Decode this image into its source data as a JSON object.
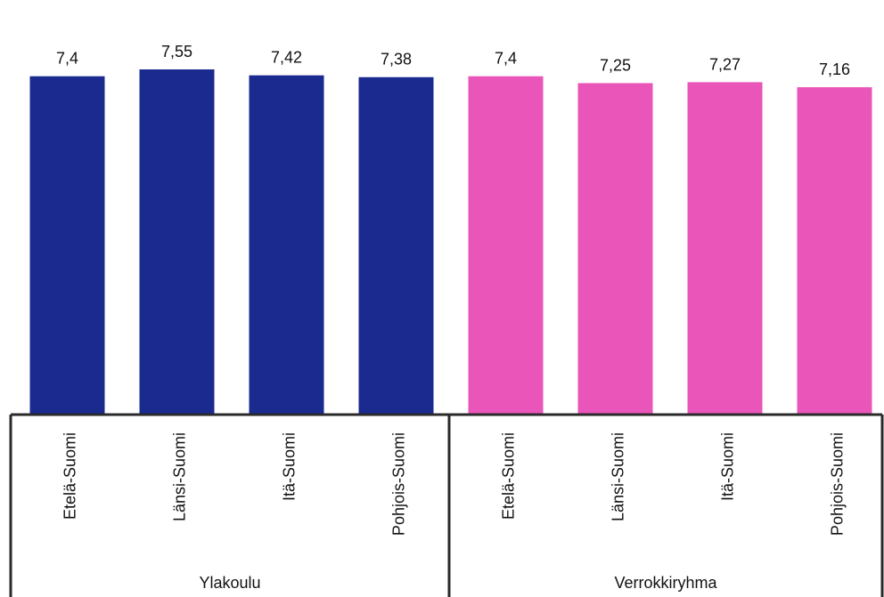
{
  "chart_data": {
    "type": "bar",
    "title": "",
    "xlabel": "",
    "ylabel": "",
    "value_labels_shown": true,
    "grid": false,
    "legend": "none",
    "ylim": [
      0,
      7.55
    ],
    "categories": [
      "Etelä-Suomi",
      "Länsi-Suomi",
      "Itä-Suomi",
      "Pohjois-Suomi",
      "Etelä-Suomi",
      "Länsi-Suomi",
      "Itä-Suomi",
      "Pohjois-Suomi"
    ],
    "groups": [
      {
        "name": "Ylakoulu",
        "color": "#1a2a8f",
        "categories": [
          "Etelä-Suomi",
          "Länsi-Suomi",
          "Itä-Suomi",
          "Pohjois-Suomi"
        ],
        "values": [
          7.4,
          7.55,
          7.42,
          7.38
        ],
        "value_labels": [
          "7,4",
          "7,55",
          "7,42",
          "7,38"
        ]
      },
      {
        "name": "Verrokkiryhma",
        "color": "#ea55b9",
        "categories": [
          "Etelä-Suomi",
          "Länsi-Suomi",
          "Itä-Suomi",
          "Pohjois-Suomi"
        ],
        "values": [
          7.4,
          7.25,
          7.27,
          7.16
        ],
        "value_labels": [
          "7,4",
          "7,25",
          "7,27",
          "7,16"
        ]
      }
    ]
  }
}
